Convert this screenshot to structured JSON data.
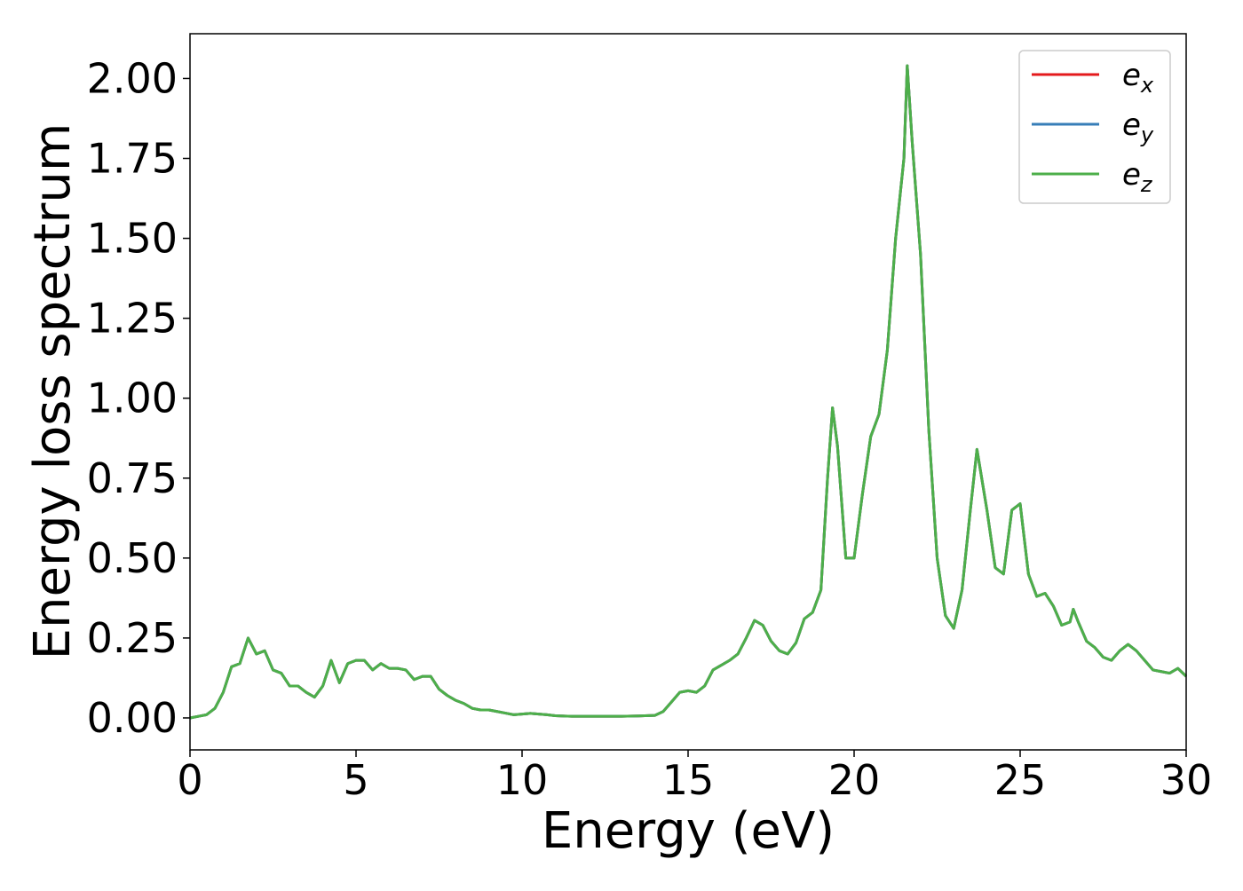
{
  "chart_data": {
    "type": "line",
    "xlabel": "Energy (eV)",
    "ylabel": "Energy loss spectrum",
    "x": [
      0,
      0.25,
      0.5,
      0.75,
      1,
      1.25,
      1.5,
      1.75,
      2,
      2.25,
      2.5,
      2.75,
      3,
      3.25,
      3.5,
      3.75,
      4,
      4.25,
      4.5,
      4.75,
      5,
      5.25,
      5.5,
      5.75,
      6,
      6.25,
      6.5,
      6.75,
      7,
      7.25,
      7.5,
      7.75,
      8,
      8.25,
      8.5,
      8.75,
      9,
      9.25,
      9.5,
      9.75,
      10,
      10.25,
      10.5,
      10.75,
      11,
      11.5,
      12,
      12.5,
      13,
      13.5,
      14,
      14.25,
      14.5,
      14.75,
      15,
      15.25,
      15.5,
      15.75,
      16,
      16.25,
      16.5,
      16.75,
      17,
      17.25,
      17.5,
      17.75,
      18,
      18.25,
      18.5,
      18.75,
      19,
      19.2,
      19.35,
      19.5,
      19.75,
      20,
      20.25,
      20.5,
      20.75,
      21,
      21.25,
      21.5,
      21.6,
      21.75,
      22,
      22.25,
      22.5,
      22.75,
      23,
      23.25,
      23.5,
      23.7,
      24,
      24.25,
      24.5,
      24.75,
      25,
      25.25,
      25.5,
      25.75,
      26,
      26.25,
      26.5,
      26.6,
      26.75,
      27,
      27.25,
      27.5,
      27.75,
      28,
      28.25,
      28.5,
      28.75,
      29,
      29.25,
      29.5,
      29.75,
      30
    ],
    "series": [
      {
        "name": "e_x",
        "color": "#e41a1c",
        "values": [
          0,
          0.005,
          0.01,
          0.03,
          0.08,
          0.16,
          0.17,
          0.25,
          0.2,
          0.21,
          0.15,
          0.14,
          0.1,
          0.1,
          0.08,
          0.065,
          0.1,
          0.18,
          0.11,
          0.17,
          0.18,
          0.18,
          0.15,
          0.17,
          0.155,
          0.155,
          0.15,
          0.12,
          0.13,
          0.13,
          0.09,
          0.07,
          0.055,
          0.045,
          0.03,
          0.025,
          0.025,
          0.02,
          0.015,
          0.01,
          0.012,
          0.014,
          0.012,
          0.01,
          0.007,
          0.005,
          0.005,
          0.005,
          0.005,
          0.006,
          0.008,
          0.02,
          0.05,
          0.08,
          0.085,
          0.08,
          0.1,
          0.15,
          0.165,
          0.18,
          0.2,
          0.25,
          0.305,
          0.29,
          0.24,
          0.21,
          0.2,
          0.235,
          0.31,
          0.33,
          0.4,
          0.75,
          0.97,
          0.85,
          0.5,
          0.5,
          0.7,
          0.88,
          0.95,
          1.15,
          1.5,
          1.75,
          2.04,
          1.8,
          1.45,
          0.9,
          0.5,
          0.32,
          0.28,
          0.4,
          0.65,
          0.84,
          0.65,
          0.47,
          0.45,
          0.65,
          0.67,
          0.45,
          0.38,
          0.39,
          0.35,
          0.29,
          0.3,
          0.34,
          0.3,
          0.24,
          0.22,
          0.19,
          0.18,
          0.21,
          0.23,
          0.21,
          0.18,
          0.15,
          0.145,
          0.14,
          0.155,
          0.13
        ]
      },
      {
        "name": "e_y",
        "color": "#377eb8",
        "values": [
          0,
          0.005,
          0.01,
          0.03,
          0.08,
          0.16,
          0.17,
          0.25,
          0.2,
          0.21,
          0.15,
          0.14,
          0.1,
          0.1,
          0.08,
          0.065,
          0.1,
          0.18,
          0.11,
          0.17,
          0.18,
          0.18,
          0.15,
          0.17,
          0.155,
          0.155,
          0.15,
          0.12,
          0.13,
          0.13,
          0.09,
          0.07,
          0.055,
          0.045,
          0.03,
          0.025,
          0.025,
          0.02,
          0.015,
          0.01,
          0.012,
          0.014,
          0.012,
          0.01,
          0.007,
          0.005,
          0.005,
          0.005,
          0.005,
          0.006,
          0.008,
          0.02,
          0.05,
          0.08,
          0.085,
          0.08,
          0.1,
          0.15,
          0.165,
          0.18,
          0.2,
          0.25,
          0.305,
          0.29,
          0.24,
          0.21,
          0.2,
          0.235,
          0.31,
          0.33,
          0.4,
          0.75,
          0.97,
          0.85,
          0.5,
          0.5,
          0.7,
          0.88,
          0.95,
          1.15,
          1.5,
          1.75,
          2.04,
          1.8,
          1.45,
          0.9,
          0.5,
          0.32,
          0.28,
          0.4,
          0.65,
          0.84,
          0.65,
          0.47,
          0.45,
          0.65,
          0.67,
          0.45,
          0.38,
          0.39,
          0.35,
          0.29,
          0.3,
          0.34,
          0.3,
          0.24,
          0.22,
          0.19,
          0.18,
          0.21,
          0.23,
          0.21,
          0.18,
          0.15,
          0.145,
          0.14,
          0.155,
          0.13
        ]
      },
      {
        "name": "e_z",
        "color": "#4daf4a",
        "values": [
          0,
          0.005,
          0.01,
          0.03,
          0.08,
          0.16,
          0.17,
          0.25,
          0.2,
          0.21,
          0.15,
          0.14,
          0.1,
          0.1,
          0.08,
          0.065,
          0.1,
          0.18,
          0.11,
          0.17,
          0.18,
          0.18,
          0.15,
          0.17,
          0.155,
          0.155,
          0.15,
          0.12,
          0.13,
          0.13,
          0.09,
          0.07,
          0.055,
          0.045,
          0.03,
          0.025,
          0.025,
          0.02,
          0.015,
          0.01,
          0.012,
          0.014,
          0.012,
          0.01,
          0.007,
          0.005,
          0.005,
          0.005,
          0.005,
          0.006,
          0.008,
          0.02,
          0.05,
          0.08,
          0.085,
          0.08,
          0.1,
          0.15,
          0.165,
          0.18,
          0.2,
          0.25,
          0.305,
          0.29,
          0.24,
          0.21,
          0.2,
          0.235,
          0.31,
          0.33,
          0.4,
          0.75,
          0.97,
          0.85,
          0.5,
          0.5,
          0.7,
          0.88,
          0.95,
          1.15,
          1.5,
          1.75,
          2.04,
          1.8,
          1.45,
          0.9,
          0.5,
          0.32,
          0.28,
          0.4,
          0.65,
          0.84,
          0.65,
          0.47,
          0.45,
          0.65,
          0.67,
          0.45,
          0.38,
          0.39,
          0.35,
          0.29,
          0.3,
          0.34,
          0.3,
          0.24,
          0.22,
          0.19,
          0.18,
          0.21,
          0.23,
          0.21,
          0.18,
          0.15,
          0.145,
          0.14,
          0.155,
          0.13
        ]
      }
    ],
    "xlim": [
      0,
      30
    ],
    "xticks": [
      0,
      5,
      10,
      15,
      20,
      25,
      30
    ],
    "ylim": [
      -0.1,
      2.14
    ],
    "yticks": [
      {
        "value": 0,
        "label": "0.00"
      },
      0.25,
      {
        "value": 0.5,
        "label": "0.50"
      },
      0.75,
      {
        "value": 1,
        "label": "1.00"
      },
      1.25,
      {
        "value": 1.5,
        "label": "1.50"
      },
      1.75,
      {
        "value": 2,
        "label": "2.00"
      }
    ],
    "grid": false,
    "legend": "upper right"
  }
}
